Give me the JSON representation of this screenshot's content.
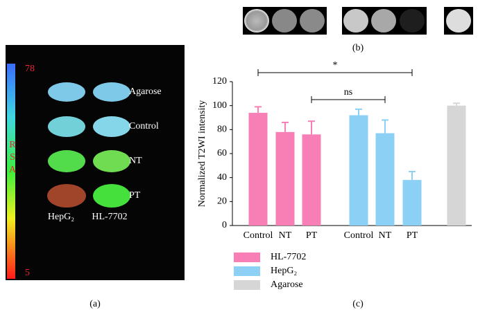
{
  "panels": {
    "a": {
      "label": "(a)",
      "scale_max": "78",
      "scale_min": "5",
      "scale_letters": [
        "R",
        "S",
        "A"
      ],
      "rows": [
        "Agarose",
        "Control",
        "NT",
        "PT"
      ],
      "columns": [
        "HepG₂",
        "HL-7702"
      ]
    },
    "b": {
      "label": "(b)"
    },
    "c": {
      "label": "(c)"
    }
  },
  "chart_data": {
    "type": "bar",
    "ylabel": "Normalized T2WI intensity",
    "categories": [
      "Control",
      "NT",
      "PT",
      "Control",
      "NT",
      "PT",
      null
    ],
    "series": [
      {
        "name": "HL-7702",
        "color": "#f77fb5",
        "values": [
          94,
          78,
          76,
          null,
          null,
          null,
          null
        ],
        "errors": [
          5,
          8,
          11,
          null,
          null,
          null,
          null
        ]
      },
      {
        "name": "HepG₂",
        "color": "#8dd0f5",
        "values": [
          null,
          null,
          null,
          92,
          77,
          38,
          null
        ],
        "errors": [
          null,
          null,
          null,
          5,
          11,
          7,
          null
        ]
      },
      {
        "name": "Agarose",
        "color": "#d6d6d6",
        "values": [
          null,
          null,
          null,
          null,
          null,
          null,
          100
        ],
        "errors": [
          null,
          null,
          null,
          null,
          null,
          null,
          2
        ]
      }
    ],
    "ylim": [
      0,
      120
    ],
    "yticks": [
      0,
      20,
      40,
      60,
      80,
      100,
      120
    ],
    "annotations": [
      {
        "text": "*"
      },
      {
        "text": "ns"
      }
    ]
  }
}
